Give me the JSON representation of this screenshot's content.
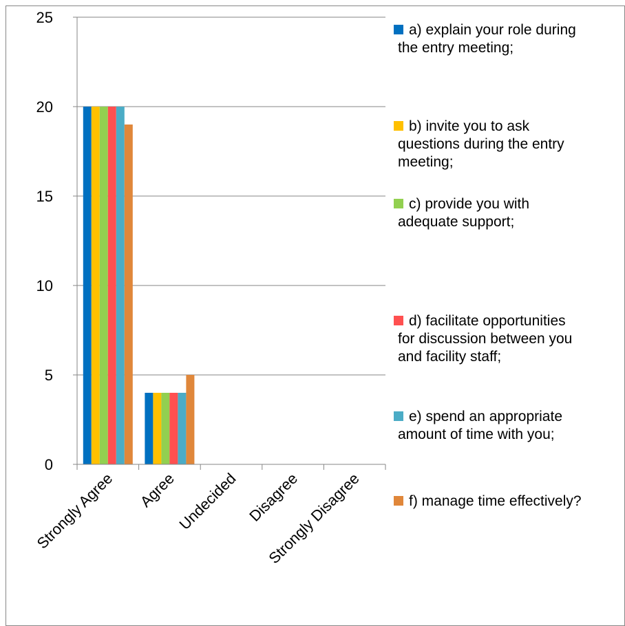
{
  "chart_data": {
    "type": "bar",
    "title": "",
    "xlabel": "",
    "ylabel": "",
    "categories": [
      "Strongly Agree",
      "Agree",
      "Undecided",
      "Disagree",
      "Strongly Disagree"
    ],
    "ylim": [
      0,
      25
    ],
    "y_ticks": [
      0,
      5,
      10,
      15,
      20,
      25
    ],
    "grid": true,
    "legend_position": "right",
    "series": [
      {
        "name": "a) explain your role during the entry meeting;",
        "legend_lines": [
          "a) explain your role during",
          "the entry meeting;"
        ],
        "color": "#0070C0",
        "values": [
          20,
          4,
          0,
          0,
          0
        ]
      },
      {
        "name": "b) invite you to ask questions during the entry meeting;",
        "legend_lines": [
          "b) invite you to ask",
          "questions during the entry",
          "meeting;"
        ],
        "color": "#FFC000",
        "values": [
          20,
          4,
          0,
          0,
          0
        ]
      },
      {
        "name": "c) provide you with adequate support;",
        "legend_lines": [
          "c) provide you with",
          "adequate support;"
        ],
        "color": "#92D050",
        "values": [
          20,
          4,
          0,
          0,
          0
        ]
      },
      {
        "name": "d) facilitate opportunities for discussion between you and facility staff;",
        "legend_lines": [
          "d) facilitate opportunities",
          "for discussion between you",
          "and facility staff;"
        ],
        "color": "#FF5050",
        "values": [
          20,
          4,
          0,
          0,
          0
        ]
      },
      {
        "name": "e) spend an appropriate amount of time with you;",
        "legend_lines": [
          "e) spend an appropriate",
          "amount of time with you;"
        ],
        "color": "#4BACC6",
        "values": [
          20,
          4,
          0,
          0,
          0
        ]
      },
      {
        "name": "f) manage time effectively?",
        "legend_lines": [
          "f) manage time effectively?"
        ],
        "color": "#E0873A",
        "values": [
          19,
          5,
          0,
          0,
          0
        ]
      }
    ]
  }
}
